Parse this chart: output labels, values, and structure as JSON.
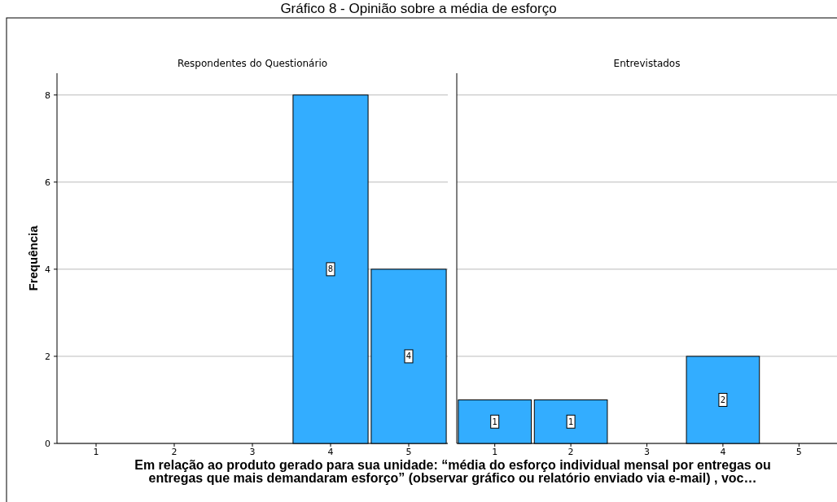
{
  "chart_data": [
    {
      "type": "bar",
      "title": "Gráfico 8 - Opinião sobre a média de esforço",
      "subtitle": "Respondentes do Questionário",
      "ylabel": "Frequência",
      "xlabel": "Em relação ao produto gerado para sua unidade: “média do esforço individual mensal por entregas ou entregas que mais demandaram esforço” (observar gráfico ou relatório enviado via e-mail) , voc…",
      "categories": [
        "1",
        "2",
        "3",
        "4",
        "5"
      ],
      "values": [
        0,
        0,
        0,
        8,
        4
      ],
      "value_labels": [
        null,
        null,
        null,
        "8",
        "4"
      ],
      "color": "#33adff",
      "ylim": [
        0,
        8.5
      ],
      "yticks": [
        0,
        2,
        4,
        6,
        8
      ],
      "grid": "y"
    },
    {
      "type": "bar",
      "subtitle": "Entrevistados",
      "categories": [
        "1",
        "2",
        "3",
        "4",
        "5"
      ],
      "values": [
        1,
        1,
        0,
        2,
        0
      ],
      "value_labels": [
        "1",
        "1",
        null,
        "2",
        null
      ],
      "color": "#33adff",
      "ylim": [
        0,
        8.5
      ],
      "yticks": [
        0,
        2,
        4,
        6,
        8
      ],
      "grid": "y",
      "tick_labels": "x"
    }
  ]
}
